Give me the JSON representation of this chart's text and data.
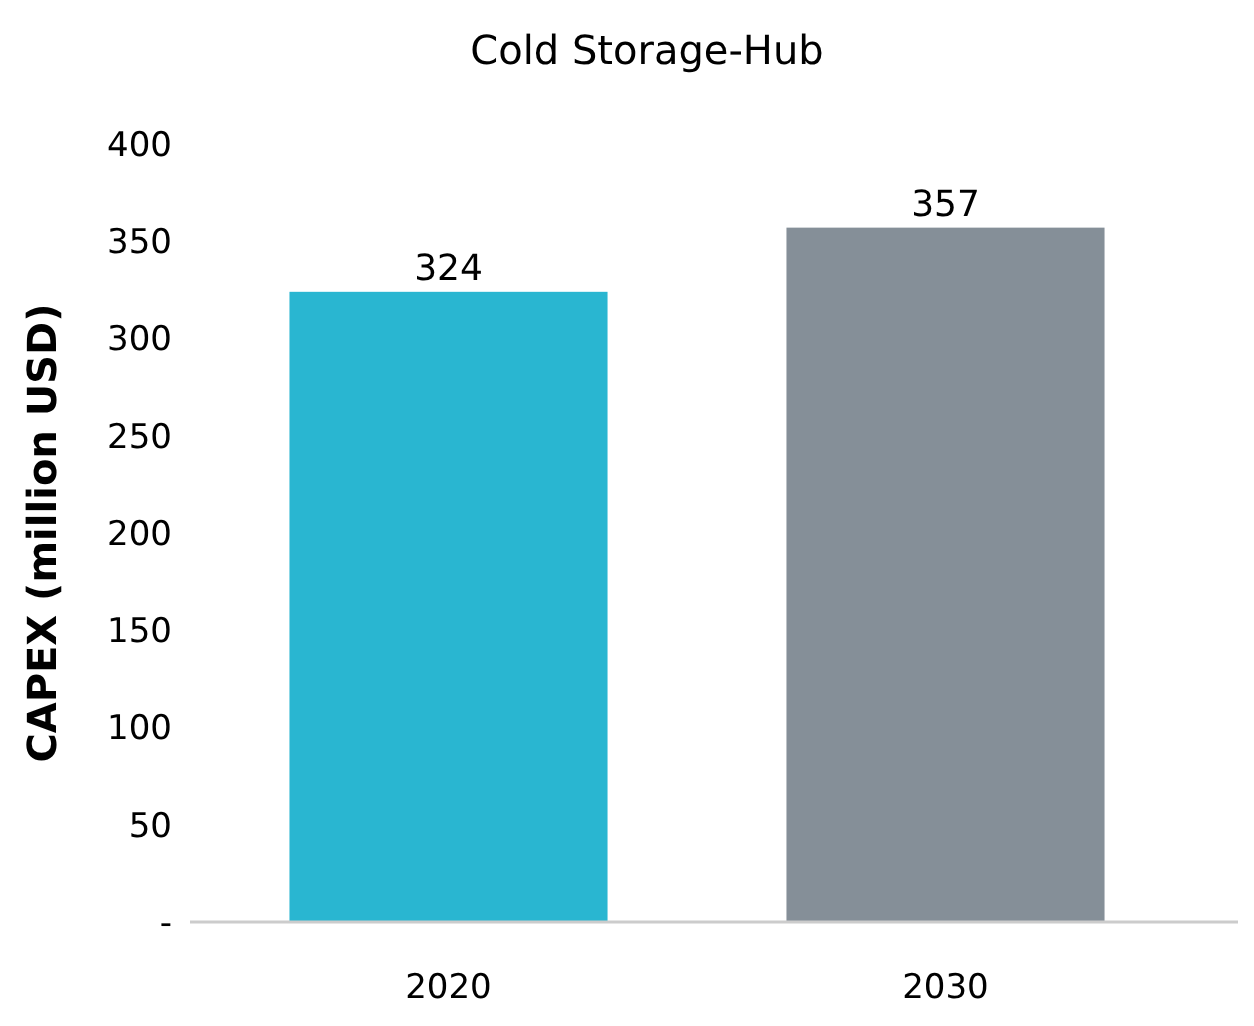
{
  "chart_data": {
    "type": "bar",
    "title": "Cold Storage-Hub",
    "ylabel": "CAPEX (million USD)",
    "categories": [
      "2020",
      "2030"
    ],
    "values": [
      324,
      357
    ],
    "colors": [
      "#29b6d1",
      "#858f98"
    ],
    "ylim": [
      0,
      400
    ],
    "yticks": [
      {
        "value": 0,
        "label": "-"
      },
      50,
      100,
      150,
      200,
      250,
      300,
      350,
      400
    ],
    "data_labels": true,
    "grid": false
  }
}
